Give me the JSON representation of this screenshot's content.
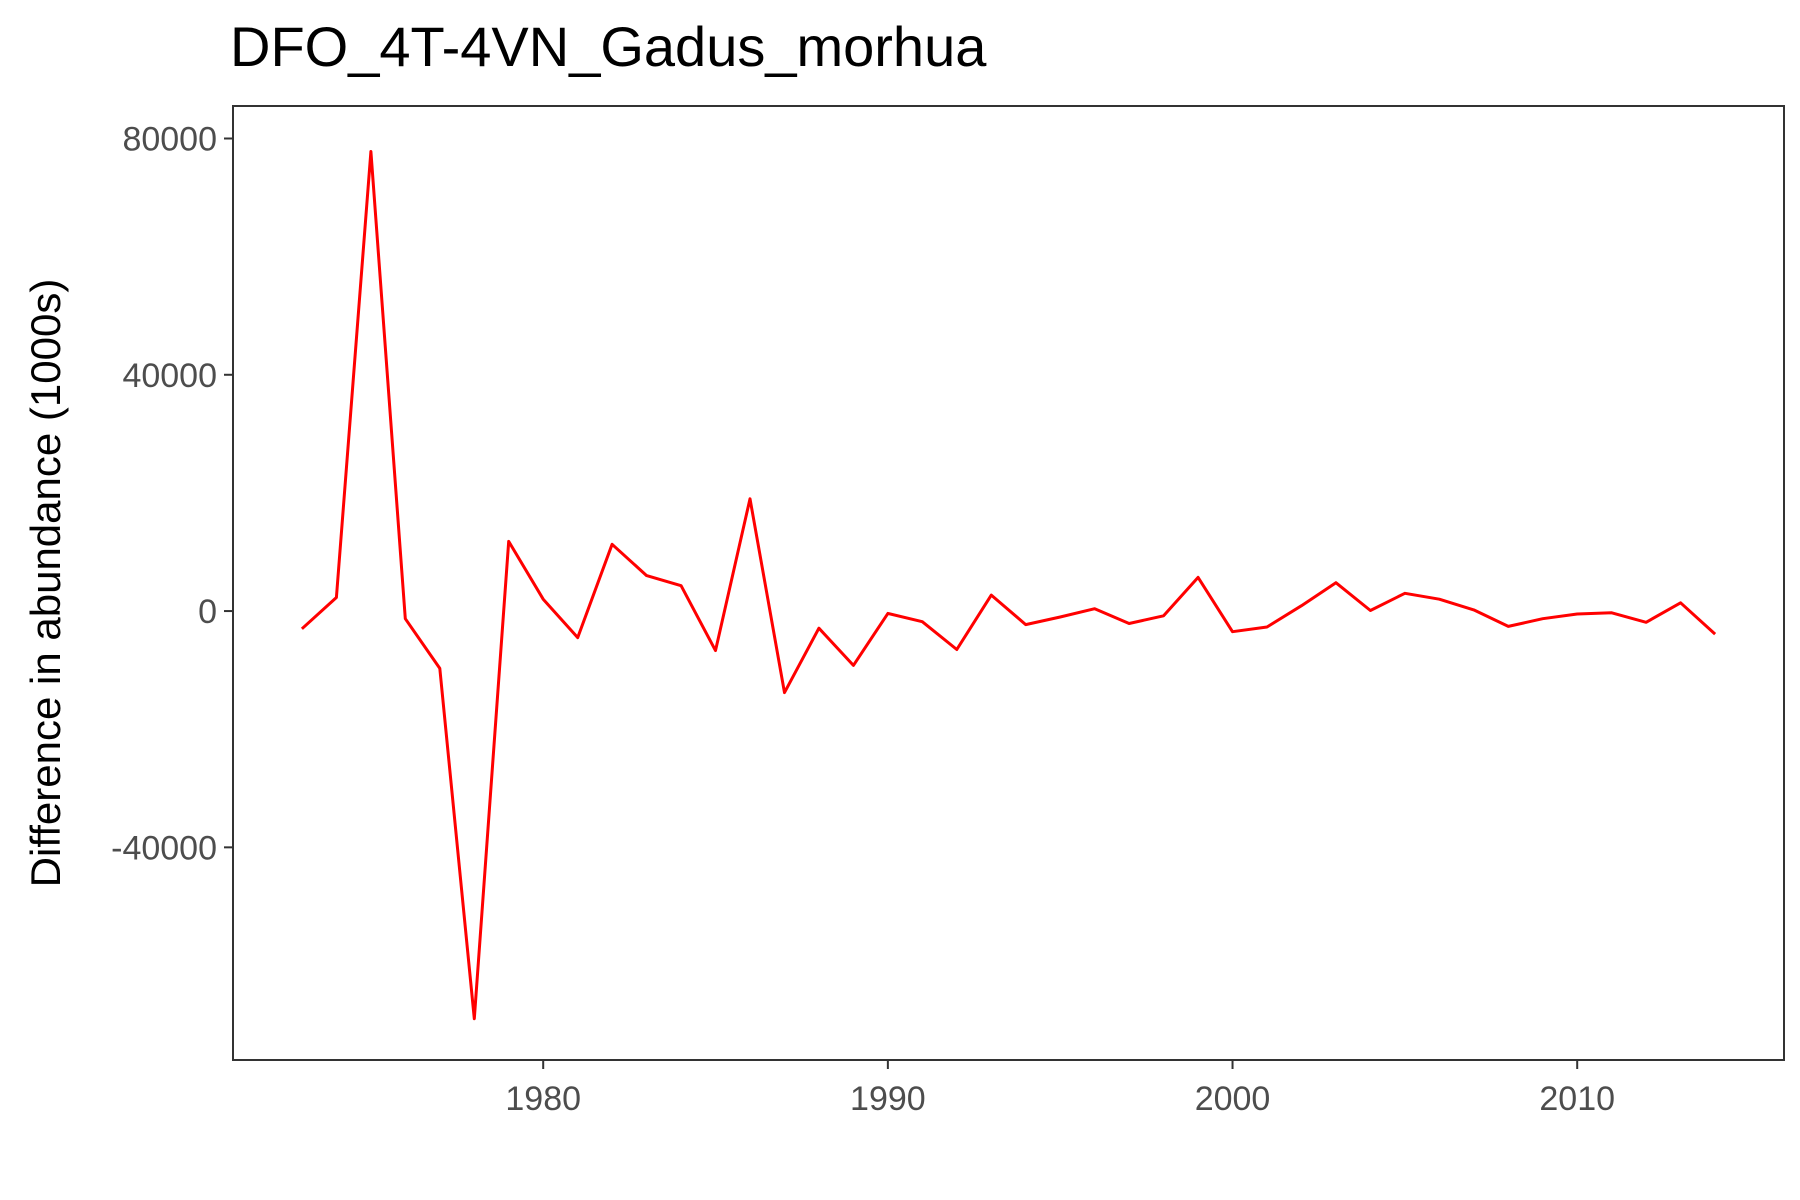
{
  "chart_data": {
    "type": "line",
    "title": "DFO_4T-4VN_Gadus_morhua",
    "xlabel": "",
    "ylabel": "Difference in abundance (1000s)",
    "xlim": [
      1971,
      2016
    ],
    "ylim": [
      -76000,
      85500
    ],
    "x_ticks": [
      1980,
      1990,
      2000,
      2010
    ],
    "y_ticks": [
      -40000,
      0,
      40000,
      80000
    ],
    "grid": false,
    "legend": "none",
    "series": [
      {
        "color": "#ff0000",
        "x": [
          1973,
          1974,
          1975,
          1976,
          1977,
          1978,
          1979,
          1980,
          1981,
          1982,
          1983,
          1984,
          1985,
          1986,
          1987,
          1988,
          1989,
          1990,
          1991,
          1992,
          1993,
          1994,
          1995,
          1996,
          1997,
          1998,
          1999,
          2000,
          2001,
          2002,
          2003,
          2004,
          2005,
          2006,
          2007,
          2008,
          2009,
          2010,
          2011,
          2012,
          2013,
          2014
        ],
        "y": [
          -3000,
          2300,
          77800,
          -1300,
          -9700,
          -69000,
          11800,
          2000,
          -4500,
          11300,
          6000,
          4300,
          -6700,
          19000,
          -13800,
          -2900,
          -9200,
          -400,
          -1800,
          -6500,
          2700,
          -2300,
          -1000,
          400,
          -2100,
          -800,
          5700,
          -3500,
          -2700,
          900,
          4800,
          100,
          3000,
          2000,
          200,
          -2600,
          -1300,
          -500,
          -300,
          -1900,
          1400,
          -3900
        ]
      }
    ]
  },
  "colors": {
    "line": "#ff0000",
    "panel_border": "#333333",
    "tick": "#333333",
    "tick_label": "#4d4d4d"
  }
}
